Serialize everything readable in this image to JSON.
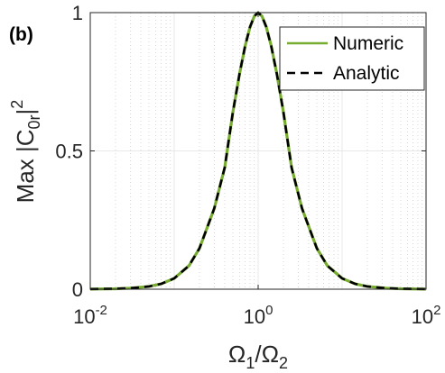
{
  "chart_data": {
    "type": "line",
    "panel_label": "(b)",
    "xscale": "log",
    "xlim": [
      0.01,
      100
    ],
    "ylim": [
      0,
      1
    ],
    "grid": true,
    "legend_position": "top-right",
    "xlabel": {
      "main_1": "Ω",
      "sub_1": "1",
      "sep": "/",
      "main_2": "Ω",
      "sub_2": "2"
    },
    "ylabel": {
      "prefix": "Max |C",
      "sub": "0r",
      "mid": "|",
      "sup": "2"
    },
    "x_ticks": [
      {
        "base": "10",
        "exp": "-2",
        "value": 0.01
      },
      {
        "base": "10",
        "exp": "0",
        "value": 1
      },
      {
        "base": "10",
        "exp": "2",
        "value": 100
      }
    ],
    "y_ticks": [
      {
        "label": "0",
        "value": 0
      },
      {
        "label": "0.5",
        "value": 0.5
      },
      {
        "label": "1",
        "value": 1
      }
    ],
    "colors": {
      "numeric": "#77ac30",
      "analytic": "#000000",
      "grid": "#c8c8c8",
      "axis": "#262626"
    },
    "series": [
      {
        "name": "Numeric",
        "style": "solid",
        "x": [
          0.01,
          0.02,
          0.03,
          0.05,
          0.07,
          0.1,
          0.15,
          0.2,
          0.3,
          0.4,
          0.5,
          0.6,
          0.7,
          0.8,
          0.9,
          1,
          1.11,
          1.25,
          1.43,
          1.67,
          2,
          2.5,
          3.33,
          5,
          6.67,
          10,
          14.3,
          20,
          33.3,
          50,
          100
        ],
        "values": [
          0.0004,
          0.0016,
          0.0036,
          0.0099,
          0.0194,
          0.0392,
          0.085,
          0.1479,
          0.292,
          0.4402,
          0.64,
          0.7785,
          0.8795,
          0.948,
          0.9872,
          1.0,
          0.9872,
          0.948,
          0.8795,
          0.7785,
          0.64,
          0.4402,
          0.292,
          0.1479,
          0.085,
          0.0392,
          0.0194,
          0.0099,
          0.0036,
          0.0016,
          0.0004
        ]
      },
      {
        "name": "Analytic",
        "style": "dashed",
        "x": [
          0.01,
          0.02,
          0.03,
          0.05,
          0.07,
          0.1,
          0.15,
          0.2,
          0.3,
          0.4,
          0.5,
          0.6,
          0.7,
          0.8,
          0.9,
          1,
          1.11,
          1.25,
          1.43,
          1.67,
          2,
          2.5,
          3.33,
          5,
          6.67,
          10,
          14.3,
          20,
          33.3,
          50,
          100
        ],
        "values": [
          0.0004,
          0.0016,
          0.0036,
          0.0099,
          0.0194,
          0.0392,
          0.085,
          0.1479,
          0.292,
          0.4402,
          0.64,
          0.7785,
          0.8795,
          0.948,
          0.9872,
          1.0,
          0.9872,
          0.948,
          0.8795,
          0.7785,
          0.64,
          0.4402,
          0.292,
          0.1479,
          0.085,
          0.0392,
          0.0194,
          0.0099,
          0.0036,
          0.0016,
          0.0004
        ]
      }
    ]
  }
}
